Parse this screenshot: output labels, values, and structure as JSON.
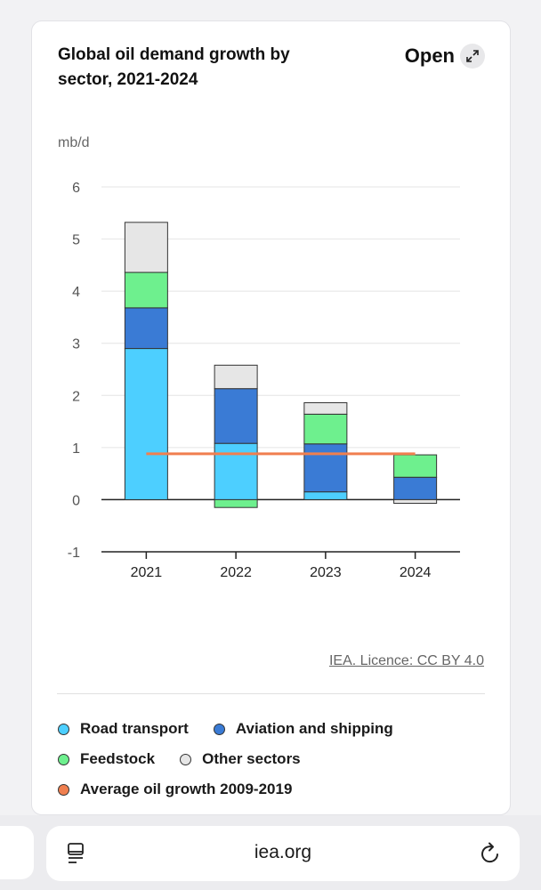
{
  "card": {
    "title": "Global oil demand growth by sector, 2021-2024",
    "open_label": "Open",
    "credit": "IEA. Licence: CC BY 4.0"
  },
  "browser": {
    "url": "iea.org"
  },
  "chart_data": {
    "type": "bar",
    "stacked": true,
    "ylabel": "mb/d",
    "ylim": [
      -1,
      6
    ],
    "yticks": [
      6,
      5,
      4,
      3,
      2,
      1,
      0,
      -1
    ],
    "categories": [
      "2021",
      "2022",
      "2023",
      "2024"
    ],
    "series": [
      {
        "name": "Road transport",
        "color": "#4dcfff",
        "values": [
          2.9,
          1.08,
          0.15,
          0.0
        ]
      },
      {
        "name": "Aviation and shipping",
        "color": "#3a7bd5",
        "values": [
          0.78,
          1.05,
          0.92,
          0.43
        ]
      },
      {
        "name": "Feedstock",
        "color": "#6ef08e",
        "values": [
          0.68,
          -0.15,
          0.57,
          0.43
        ]
      },
      {
        "name": "Other sectors",
        "color": "#e6e6e6",
        "values": [
          0.96,
          0.45,
          0.22,
          -0.07
        ]
      }
    ],
    "line": {
      "name": "Average oil growth 2009-2019",
      "color": "#f07f4f",
      "value": 0.88
    },
    "legend_position": "bottom"
  }
}
